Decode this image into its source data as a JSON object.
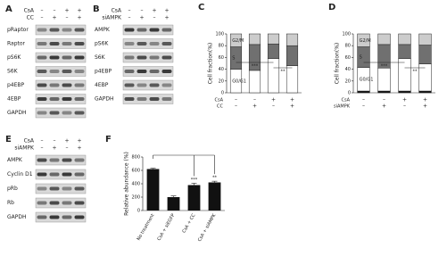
{
  "panels": {
    "A": {
      "label": "A",
      "conditions": [
        {
          "name": "CsA",
          "signs": [
            "–",
            "–",
            "+",
            "+"
          ]
        },
        {
          "name": "CC",
          "signs": [
            "–",
            "+",
            "–",
            "+"
          ]
        }
      ],
      "rows": [
        "pRaptor",
        "Raptor",
        "pS6K",
        "S6K",
        "p4EBP",
        "4EBP",
        "GAPDH"
      ]
    },
    "B": {
      "label": "B",
      "conditions": [
        {
          "name": "CsA",
          "signs": [
            "–",
            "–",
            "+",
            "+"
          ]
        },
        {
          "name": "siAMPK",
          "signs": [
            "–",
            "+",
            "–",
            "+"
          ]
        }
      ],
      "rows": [
        "AMPK",
        "pS6K",
        "S6K",
        "p4EBP",
        "4EBP",
        "GAPDH"
      ]
    },
    "E": {
      "label": "E",
      "conditions": [
        {
          "name": "CsA",
          "signs": [
            "–",
            "–",
            "+",
            "+"
          ]
        },
        {
          "name": "siAMPK",
          "signs": [
            "–",
            "+",
            "–",
            "+"
          ]
        }
      ],
      "rows": [
        "AMPK",
        "Cyclin D1",
        "pRb",
        "Rb",
        "GAPDH"
      ]
    }
  },
  "chart_data": [
    {
      "type": "stacked_bar",
      "label": "C",
      "y_label": "Cell fraction(%)",
      "ylim": [
        0,
        100
      ],
      "yticks": [
        0,
        20,
        40,
        60,
        80,
        100
      ],
      "conditions": [
        {
          "name": "CsA",
          "signs": [
            "–",
            "–",
            "+",
            "+"
          ]
        },
        {
          "name": "CC",
          "signs": [
            "–",
            "+",
            "–",
            "+"
          ]
        }
      ],
      "series": [
        {
          "name": "G0/G1",
          "color": "#ffffff",
          "values": [
            40,
            38,
            58,
            46
          ]
        },
        {
          "name": "S",
          "color": "#707070",
          "values": [
            38,
            44,
            25,
            34
          ]
        },
        {
          "name": "G2/M",
          "color": "#cccccc",
          "values": [
            22,
            18,
            17,
            20
          ]
        }
      ],
      "annotations": [
        "***",
        "**"
      ]
    },
    {
      "type": "stacked_bar",
      "label": "D",
      "y_label": "Cell fraction(%)",
      "ylim": [
        0,
        100
      ],
      "yticks": [
        0,
        20,
        40,
        60,
        80,
        100
      ],
      "conditions": [
        {
          "name": "CsA",
          "signs": [
            "–",
            "–",
            "+",
            "+"
          ]
        },
        {
          "name": "siAMPK",
          "signs": [
            "–",
            "+",
            "–",
            "+"
          ]
        }
      ],
      "series": [
        {
          "color": "#111111",
          "values": [
            3,
            3,
            3,
            3
          ]
        },
        {
          "name": "G0/G1",
          "color": "#ffffff",
          "values": [
            40,
            39,
            55,
            46
          ]
        },
        {
          "name": "S",
          "color": "#707070",
          "values": [
            35,
            40,
            24,
            32
          ]
        },
        {
          "name": "G2/M",
          "color": "#cccccc",
          "values": [
            22,
            18,
            18,
            19
          ]
        }
      ],
      "annotations": [
        "***",
        "**"
      ]
    },
    {
      "type": "bar",
      "label": "F",
      "y_label": "Relative abundance (%)",
      "ylim": [
        0,
        800
      ],
      "yticks": [
        0,
        200,
        400,
        600,
        800
      ],
      "categories": [
        "No treatment",
        "CsA + siEGFP",
        "CsA + CC",
        "CsA + siAMPK"
      ],
      "values": [
        620,
        200,
        380,
        420
      ],
      "errors": [
        12,
        18,
        28,
        18
      ],
      "color": "#111111",
      "annotations": [
        "***",
        "**"
      ]
    }
  ]
}
